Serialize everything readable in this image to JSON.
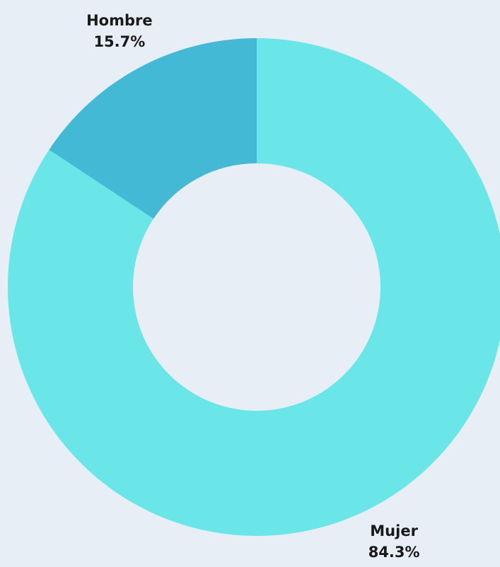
{
  "chart_data": {
    "type": "donut",
    "categories": [
      "Mujer",
      "Hombre"
    ],
    "values": [
      84.3,
      15.7
    ],
    "value_labels": [
      "84.3%",
      "15.7%"
    ],
    "colors": [
      "#6ae6e8",
      "#44b9d6"
    ]
  }
}
